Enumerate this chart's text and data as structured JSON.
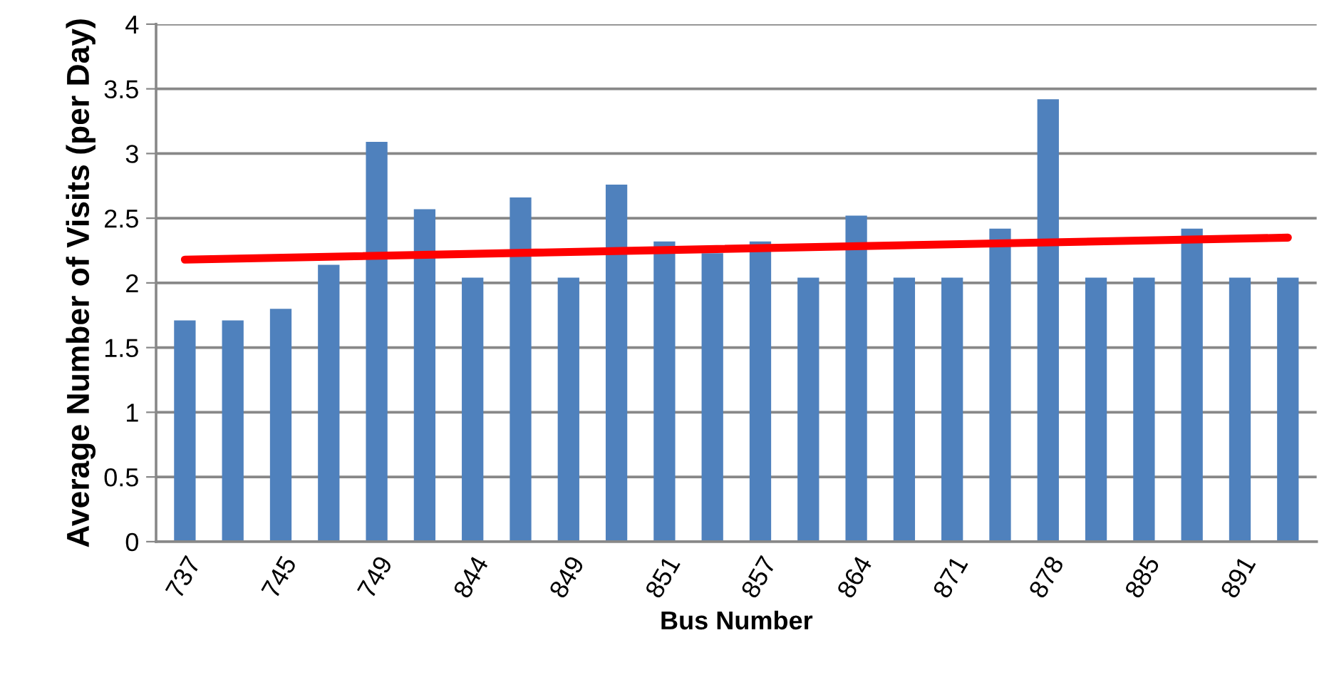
{
  "chart_data": {
    "type": "bar",
    "xlabel": "Bus Number",
    "ylabel": "Average Number of Visits (per Day)",
    "categories": [
      "737",
      null,
      "745",
      null,
      "749",
      null,
      "844",
      null,
      "849",
      null,
      "851",
      null,
      "857",
      null,
      "864",
      null,
      "871",
      null,
      "878",
      null,
      "885",
      null,
      "891",
      null
    ],
    "series": [
      {
        "color": "#4f81bd",
        "values": [
          1.71,
          1.71,
          1.8,
          2.14,
          3.09,
          2.57,
          2.04,
          2.66,
          2.04,
          2.76,
          2.32,
          2.23,
          2.32,
          2.04,
          2.52,
          2.04,
          2.04,
          2.42,
          3.42,
          2.04,
          2.04,
          2.42,
          2.04,
          2.04
        ]
      },
      {
        "type": "line",
        "color": "#ff0000",
        "values": [
          2.18,
          null,
          null,
          null,
          null,
          null,
          null,
          null,
          null,
          null,
          null,
          null,
          null,
          null,
          null,
          null,
          null,
          null,
          null,
          null,
          null,
          null,
          null,
          2.35
        ]
      }
    ],
    "ylim": [
      0,
      4
    ],
    "yticks": [
      0,
      0.5,
      1,
      1.5,
      2,
      2.5,
      3,
      3.5,
      4
    ],
    "grid": "y",
    "legend": false
  }
}
